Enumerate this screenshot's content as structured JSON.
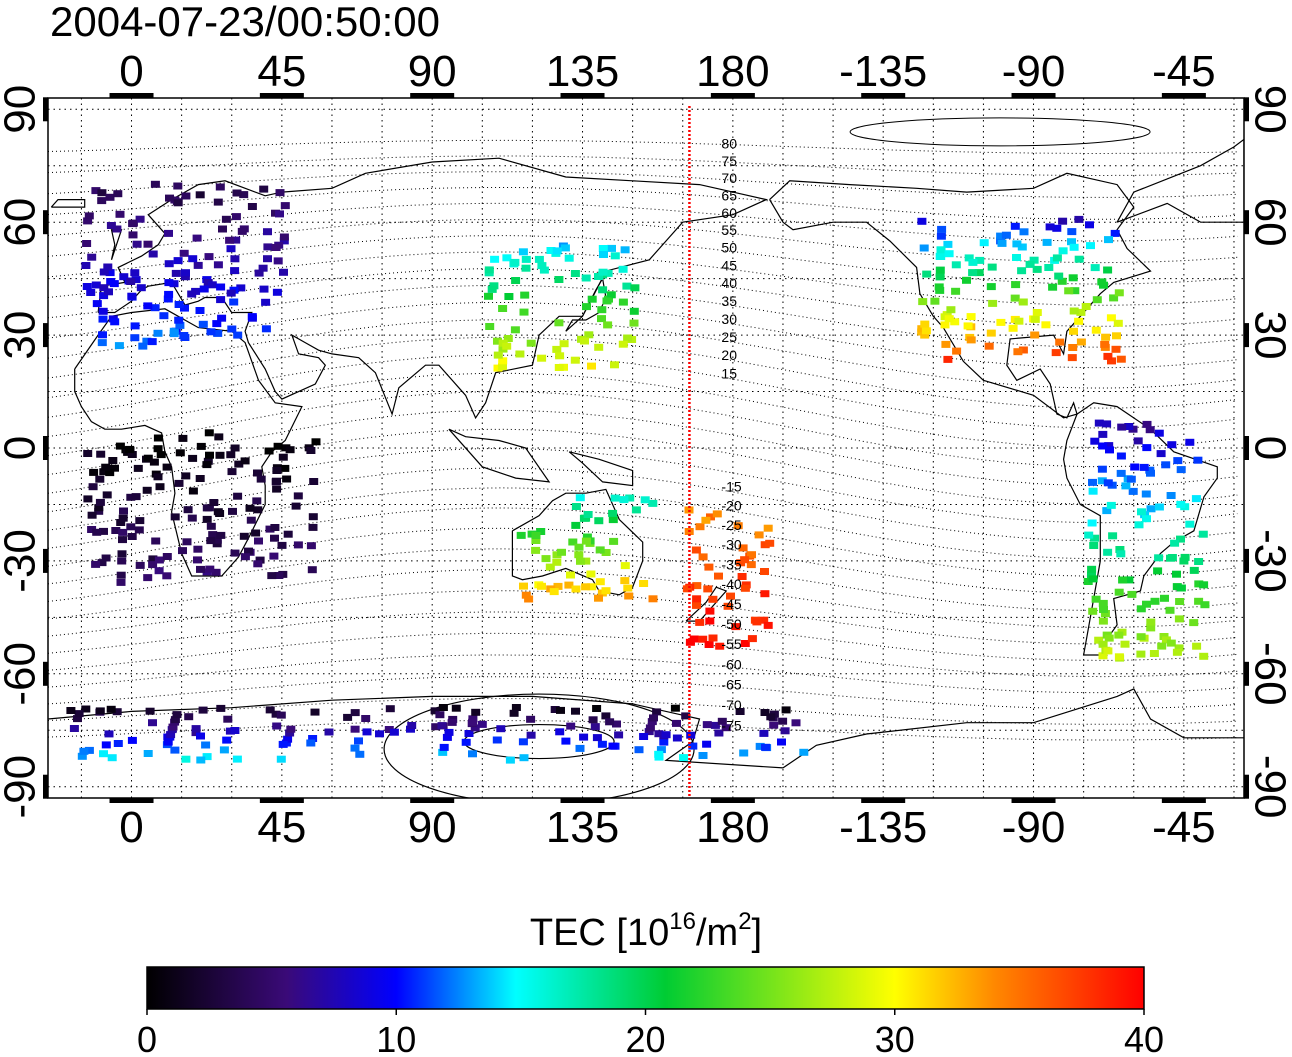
{
  "timestamp": "2004-07-23/00:50:00",
  "map": {
    "lon_ticks": [
      "0",
      "45",
      "90",
      "135",
      "180",
      "-135",
      "-90",
      "-45"
    ],
    "lat_ticks": [
      "90",
      "60",
      "30",
      "0",
      "-30",
      "-60",
      "-90"
    ],
    "lon_range": [
      -25,
      333
    ],
    "lat_range": [
      -93,
      93
    ],
    "meridian_longitude": 167,
    "meridian_color": "#ff0000",
    "contour_labels_north": [
      "80",
      "75",
      "70",
      "65",
      "60",
      "55",
      "50",
      "45",
      "40",
      "35",
      "30",
      "25",
      "20",
      "15"
    ],
    "contour_labels_south": [
      "-15",
      "-20",
      "-25",
      "-30",
      "-35",
      "-40",
      "-45",
      "-50",
      "-55",
      "-60",
      "-65",
      "-70",
      "-75"
    ],
    "grid": true,
    "icon": "world-map-coastlines"
  },
  "tec_regions": [
    {
      "name": "europe",
      "lon": [
        -15,
        45
      ],
      "lat": [
        28,
        72
      ],
      "tec": [
        3,
        12
      ]
    },
    {
      "name": "north-america",
      "lon": [
        235,
        295
      ],
      "lat": [
        24,
        62
      ],
      "tec": [
        8,
        38
      ]
    },
    {
      "name": "east-asia",
      "lon": [
        105,
        150
      ],
      "lat": [
        22,
        55
      ],
      "tec": [
        14,
        30
      ]
    },
    {
      "name": "south-pacific",
      "lon": [
        165,
        190
      ],
      "lat": [
        -52,
        -15
      ],
      "tec": [
        34,
        40
      ]
    },
    {
      "name": "australia",
      "lon": [
        115,
        155
      ],
      "lat": [
        -40,
        -12
      ],
      "tec": [
        16,
        34
      ]
    },
    {
      "name": "south-america",
      "lon": [
        285,
        320
      ],
      "lat": [
        -55,
        10
      ],
      "tec": [
        6,
        28
      ]
    },
    {
      "name": "antarctica",
      "lon": [
        -20,
        200
      ],
      "lat": [
        -82,
        -68
      ],
      "tec": [
        1,
        15
      ]
    },
    {
      "name": "africa",
      "lon": [
        -15,
        55
      ],
      "lat": [
        -35,
        5
      ],
      "tec": [
        0,
        5
      ]
    }
  ],
  "colorbar": {
    "title": "TEC  [10",
    "title_sup": "16",
    "title_mid": "/m",
    "title_sup2": "2",
    "title_end": "]",
    "ticks": [
      "0",
      "10",
      "20",
      "30",
      "40"
    ],
    "min": 0,
    "max": 40,
    "stops": [
      "#000000",
      "#3a0a78",
      "#0000ff",
      "#00ffff",
      "#00cc33",
      "#ffff00",
      "#ff8800",
      "#ff0000"
    ]
  }
}
